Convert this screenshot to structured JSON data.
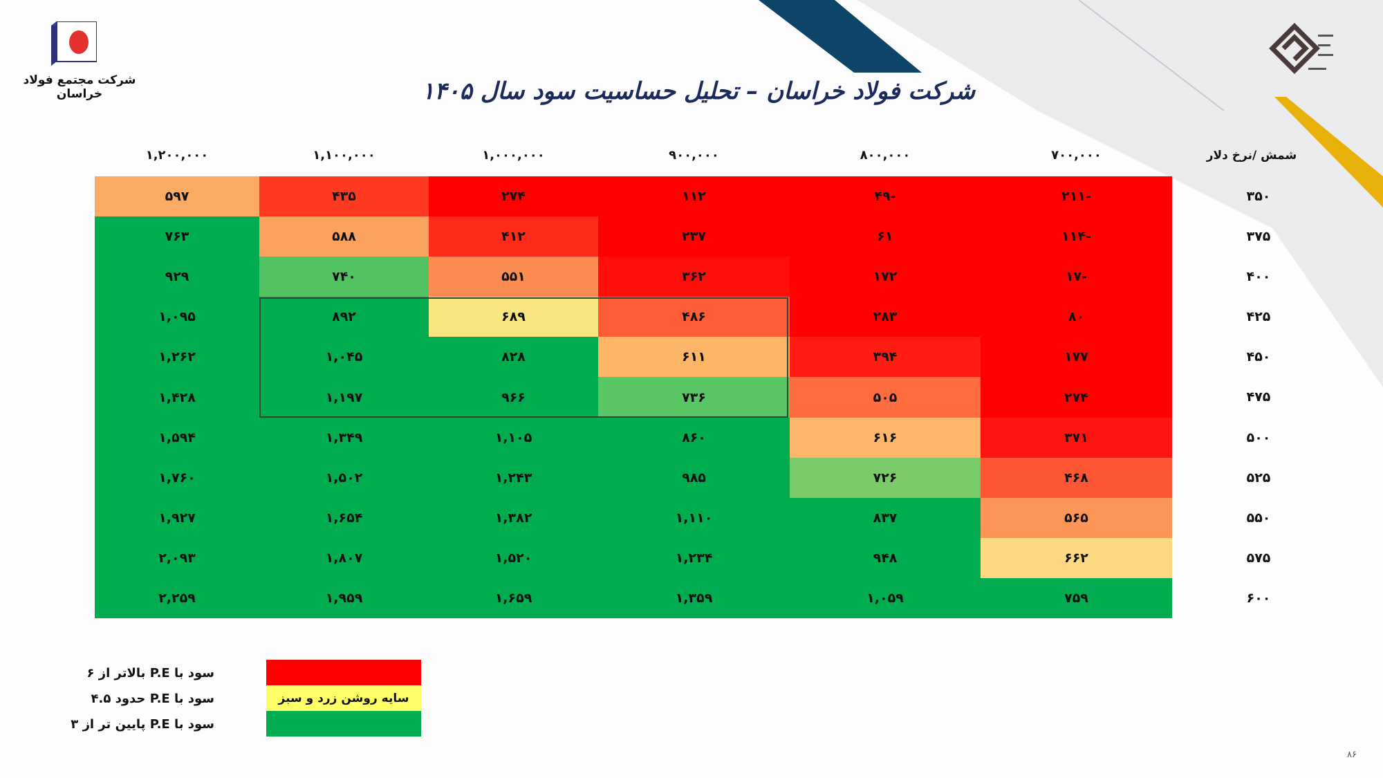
{
  "header": {
    "title": "شرکت  فولاد خراسان – تحلیل حساسیت سود سال ۱۴۰۵",
    "company_logo_text": "شرکت مجتمع فولاد خراسان"
  },
  "table": {
    "corner_label": "شمش /نرخ دلار",
    "column_headers": [
      "۱,۲۰۰,۰۰۰",
      "۱,۱۰۰,۰۰۰",
      "۱,۰۰۰,۰۰۰",
      "۹۰۰,۰۰۰",
      "۸۰۰,۰۰۰",
      "۷۰۰,۰۰۰"
    ],
    "row_labels": [
      "۳۵۰",
      "۳۷۵",
      "۴۰۰",
      "۴۲۵",
      "۴۵۰",
      "۴۷۵",
      "۵۰۰",
      "۵۲۵",
      "۵۵۰",
      "۵۷۵",
      "۶۰۰"
    ],
    "rows": [
      [
        [
          "۵۹۷",
          "#fbab63"
        ],
        [
          "۴۳۵",
          "#fe3a22"
        ],
        [
          "۲۷۴",
          "#ff0000"
        ],
        [
          "۱۱۲",
          "#ff0000"
        ],
        [
          "۴۹-",
          "#ff0000"
        ],
        [
          "۲۱۱-",
          "#ff0000"
        ]
      ],
      [
        [
          "۷۶۳",
          "#00ac4f"
        ],
        [
          "۵۸۸",
          "#f9a35f"
        ],
        [
          "۴۱۲",
          "#ff2a1a"
        ],
        [
          "۲۳۷",
          "#ff0000"
        ],
        [
          "۶۱",
          "#ff0000"
        ],
        [
          "۱۱۴-",
          "#ff0000"
        ]
      ],
      [
        [
          "۹۲۹",
          "#00ac4f"
        ],
        [
          "۷۴۰",
          "#52c262"
        ],
        [
          "۵۵۱",
          "#fd8c52"
        ],
        [
          "۳۶۲",
          "#ff0d0a"
        ],
        [
          "۱۷۲",
          "#ff0000"
        ],
        [
          "۱۷-",
          "#ff0000"
        ]
      ],
      [
        [
          "۱,۰۹۵",
          "#00ac4f"
        ],
        [
          "۸۹۲",
          "#00ac4f"
        ],
        [
          "۶۸۹",
          "#f9e682"
        ],
        [
          "۴۸۶",
          "#fe5d37"
        ],
        [
          "۲۸۳",
          "#ff0000"
        ],
        [
          "۸۰",
          "#ff0000"
        ]
      ],
      [
        [
          "۱,۲۶۲",
          "#00ac4f"
        ],
        [
          "۱,۰۴۵",
          "#00ac4f"
        ],
        [
          "۸۲۸",
          "#00ac4f"
        ],
        [
          "۶۱۱",
          "#fdb568"
        ],
        [
          "۳۹۴",
          "#ff1c12"
        ],
        [
          "۱۷۷",
          "#ff0000"
        ]
      ],
      [
        [
          "۱,۴۲۸",
          "#00ac4f"
        ],
        [
          "۱,۱۹۷",
          "#00ac4f"
        ],
        [
          "۹۶۶",
          "#00ac4f"
        ],
        [
          "۷۳۶",
          "#5ac564"
        ],
        [
          "۵۰۵",
          "#fe6d40"
        ],
        [
          "۲۷۴",
          "#ff0000"
        ]
      ],
      [
        [
          "۱,۵۹۴",
          "#00ac4f"
        ],
        [
          "۱,۳۴۹",
          "#00ac4f"
        ],
        [
          "۱,۱۰۵",
          "#00ac4f"
        ],
        [
          "۸۶۰",
          "#00ac4f"
        ],
        [
          "۶۱۶",
          "#fdb66a"
        ],
        [
          "۳۷۱",
          "#fe1511"
        ]
      ],
      [
        [
          "۱,۷۶۰",
          "#00ac4f"
        ],
        [
          "۱,۵۰۲",
          "#00ac4f"
        ],
        [
          "۱,۲۴۳",
          "#00ac4f"
        ],
        [
          "۹۸۵",
          "#00ac4f"
        ],
        [
          "۷۲۶",
          "#7bcb6a"
        ],
        [
          "۴۶۸",
          "#fe5736"
        ]
      ],
      [
        [
          "۱,۹۲۷",
          "#00ac4f"
        ],
        [
          "۱,۶۵۴",
          "#00ac4f"
        ],
        [
          "۱,۳۸۲",
          "#00ac4f"
        ],
        [
          "۱,۱۱۰",
          "#00ac4f"
        ],
        [
          "۸۳۷",
          "#00ac4f"
        ],
        [
          "۵۶۵",
          "#fd9558"
        ]
      ],
      [
        [
          "۲,۰۹۳",
          "#00ac4f"
        ],
        [
          "۱,۸۰۷",
          "#00ac4f"
        ],
        [
          "۱,۵۲۰",
          "#00ac4f"
        ],
        [
          "۱,۲۳۴",
          "#00ac4f"
        ],
        [
          "۹۴۸",
          "#00ac4f"
        ],
        [
          "۶۶۲",
          "#fdd981"
        ]
      ],
      [
        [
          "۲,۲۵۹",
          "#00ac4f"
        ],
        [
          "۱,۹۵۹",
          "#00ac4f"
        ],
        [
          "۱,۶۵۹",
          "#00ac4f"
        ],
        [
          "۱,۳۵۹",
          "#00ac4f"
        ],
        [
          "۱,۰۵۹",
          "#00ac4f"
        ],
        [
          "۷۵۹",
          "#00ac4f"
        ]
      ]
    ]
  },
  "legend": {
    "items": [
      {
        "text": "سود با  P.E بالاتر از ۶",
        "color": "#ff0000",
        "box_label": ""
      },
      {
        "text": "سود با  P.E حدود ۴.۵",
        "color": "#ffff66",
        "box_label": "سایه روشن زرد و سبز"
      },
      {
        "text": "سود با  P.E پایین تر از ۳",
        "color": "#00ac4f",
        "box_label": ""
      }
    ]
  },
  "footer": {
    "page_number": "۸۶"
  },
  "colors": {
    "navy": "#0d4468",
    "gold": "#e7b10a",
    "gray": "#ececee"
  }
}
